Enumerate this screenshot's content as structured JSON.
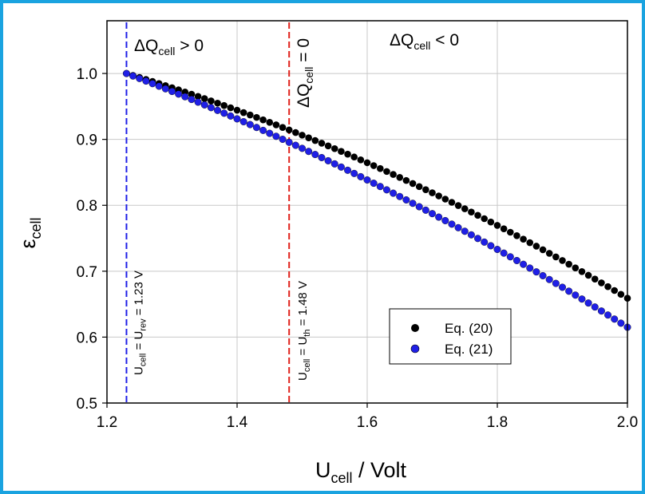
{
  "colors": {
    "frame": "#1aa3e0",
    "series_black": "#000000",
    "series_blue": "#1f1fe6",
    "line_blue": "#1f1fe6",
    "line_red": "#e0201a",
    "grid": "#c8c8c8"
  },
  "chart_data": {
    "type": "scatter",
    "title": "",
    "xlabel": {
      "main": "U",
      "sub": "cell",
      "rest": " / Volt"
    },
    "ylabel": {
      "main": "ε",
      "sub": "cell"
    },
    "xlim": [
      1.2,
      2.0
    ],
    "ylim": [
      0.5,
      1.08
    ],
    "xticks": [
      1.2,
      1.4,
      1.6,
      1.8,
      2.0
    ],
    "xtick_labels": [
      "1.2",
      "1.4",
      "1.6",
      "1.8",
      "2.0"
    ],
    "yticks": [
      0.5,
      0.6,
      0.7,
      0.8,
      0.9,
      1.0
    ],
    "ytick_labels": [
      "0.5",
      "0.6",
      "0.7",
      "0.8",
      "0.9",
      "1.0"
    ],
    "grid": true,
    "legend_position": "lower-right",
    "x_start": 1.23,
    "x_end": 2.0,
    "x_step": 0.01,
    "series": [
      {
        "name": "Eq. (20)",
        "label": "Eq. (20)",
        "color": "#000000",
        "y_start": 1.0,
        "y_end": 0.659,
        "y_mid": 0.858
      },
      {
        "name": "Eq. (21)",
        "label": "Eq. (21)",
        "color": "#1f1fe6",
        "y_start": 1.0,
        "y_end": 0.615,
        "y_mid": 0.831
      }
    ],
    "vertical_lines": [
      {
        "x": 1.23,
        "color": "#1f1fe6",
        "label": {
          "a": "U",
          "a_sub": "cell",
          "b": " = U",
          "b_sub": "rev",
          "c": " = 1.23 V"
        }
      },
      {
        "x": 1.48,
        "color": "#e0201a",
        "label": {
          "a": "U",
          "a_sub": "cell",
          "b": " = U",
          "b_sub": "th",
          "c": " = 1.48 V"
        }
      }
    ],
    "annotations": [
      {
        "id": "dq-pos",
        "main": "ΔQ",
        "sub": "cell",
        "rest": " > 0",
        "color": "#000000"
      },
      {
        "id": "dq-zero",
        "main": "ΔQ",
        "sub": "cell",
        "rest": " = 0",
        "color": "#e0201a"
      },
      {
        "id": "dq-neg",
        "main": "ΔQ",
        "sub": "cell",
        "rest": " < 0",
        "color": "#000000"
      }
    ]
  }
}
